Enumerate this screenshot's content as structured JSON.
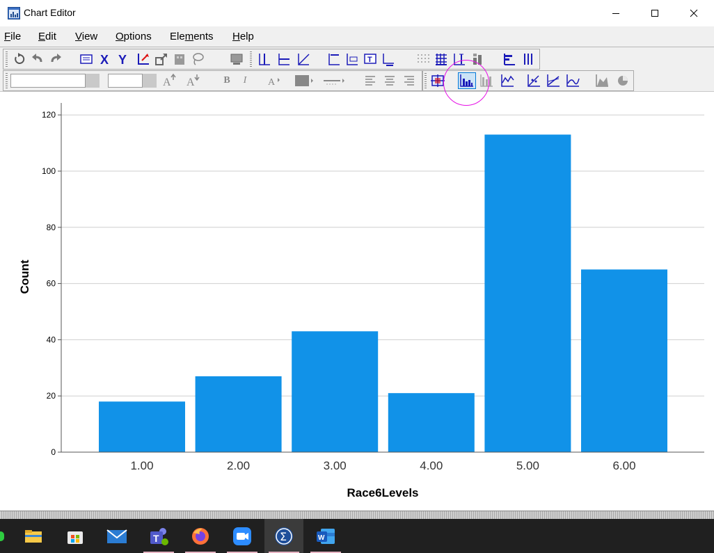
{
  "window": {
    "title": "Chart Editor"
  },
  "menubar": {
    "items": [
      {
        "pre": "",
        "u": "F",
        "post": "ile"
      },
      {
        "pre": "",
        "u": "E",
        "post": "dit"
      },
      {
        "pre": "",
        "u": "V",
        "post": "iew"
      },
      {
        "pre": "",
        "u": "O",
        "post": "ptions"
      },
      {
        "pre": "Ele",
        "u": "m",
        "post": "ents"
      },
      {
        "pre": "",
        "u": "H",
        "post": "elp"
      }
    ]
  },
  "toolbar": {
    "font_name_value": "",
    "font_size_value": "",
    "bold_label": "B",
    "italic_label": "I"
  },
  "colors": {
    "bar_fill": "#1192e8",
    "annotation_circle": "#e60ee6",
    "taskbar_bg": "#202020",
    "active_task_indicator": "#e6b3c2"
  },
  "chart_data": {
    "type": "bar",
    "categories": [
      "1.00",
      "2.00",
      "3.00",
      "4.00",
      "5.00",
      "6.00"
    ],
    "values": [
      18,
      27,
      43,
      21,
      113,
      65
    ],
    "xlabel": "Race6Levels",
    "ylabel": "Count",
    "ylim": [
      0,
      126
    ],
    "yticks": [
      0,
      20,
      40,
      60,
      80,
      100,
      120
    ],
    "grid": true,
    "legend": "none"
  },
  "taskbar": {
    "apps": [
      {
        "name": "file-explorer",
        "icon": "folder-icon"
      },
      {
        "name": "microsoft-store",
        "icon": "store-icon"
      },
      {
        "name": "mail",
        "icon": "mail-icon"
      },
      {
        "name": "teams",
        "icon": "teams-icon"
      },
      {
        "name": "firefox",
        "icon": "firefox-icon"
      },
      {
        "name": "zoom",
        "icon": "video-camera-icon"
      },
      {
        "name": "spss",
        "icon": "sigma-icon"
      },
      {
        "name": "word",
        "icon": "word-icon"
      }
    ]
  }
}
